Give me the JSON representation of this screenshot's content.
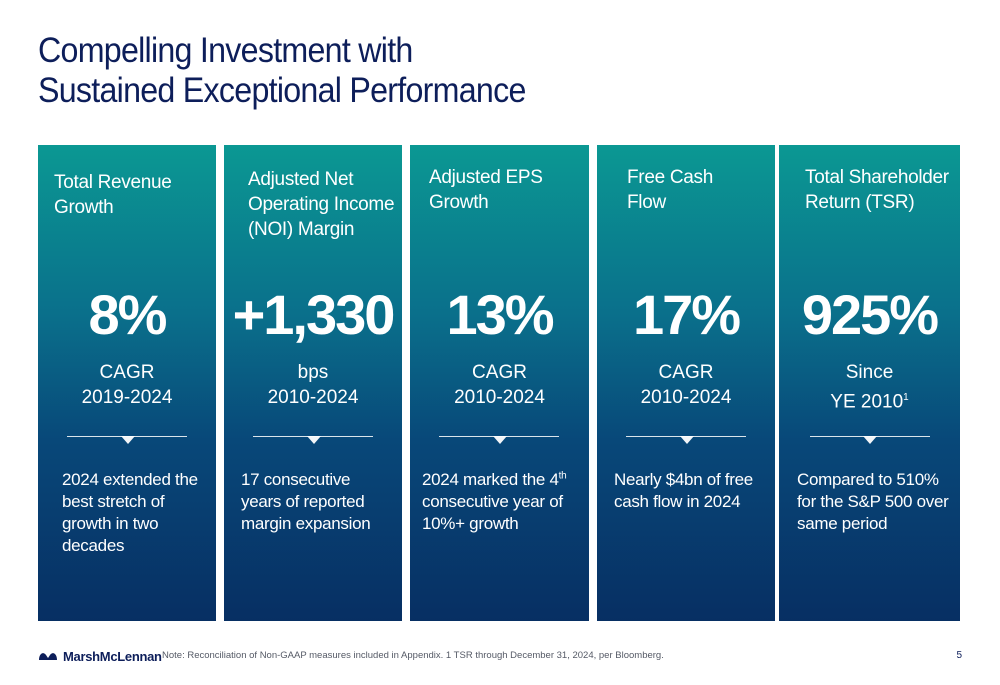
{
  "title": {
    "line1": "Compelling Investment with",
    "line2": "Sustained Exceptional Performance"
  },
  "cards": [
    {
      "title": "Total Revenue Growth",
      "value": "8%",
      "unit": "CAGR",
      "period": "2019-2024",
      "description": "2024 extended the best stretch of growth in two decades"
    },
    {
      "title": "Adjusted Net Operating Income (NOI) Margin",
      "value": "+1,330",
      "unit": "bps",
      "period": "2010-2024",
      "description": "17 consecutive years of reported margin expansion"
    },
    {
      "title": "Adjusted EPS Growth",
      "value": "13%",
      "unit": "CAGR",
      "period": "2010-2024",
      "description_before_sup": "2024 marked the 4",
      "description_sup": "th",
      "description_after_sup": " consecutive year of 10%+ growth"
    },
    {
      "title": "Free Cash Flow",
      "value": "17%",
      "unit": "CAGR",
      "period": "2010-2024",
      "description": "Nearly $4bn of free cash flow in 2024"
    },
    {
      "title": "Total Shareholder Return (TSR)",
      "value": "925%",
      "unit": "Since",
      "period_text": "YE 2010",
      "period_sup": "1",
      "description": "Compared to 510% for the S&P 500 over same period"
    }
  ],
  "footer": {
    "logo_text": "MarshMcLennan",
    "note": "Note: Reconciliation of Non-GAAP measures included in Appendix.  1  TSR through December 31, 2024, per Bloomberg.",
    "page_number": "5"
  },
  "colors": {
    "title": "#0d1e5a",
    "card_top": "#0b9893",
    "card_bottom": "#072f63"
  }
}
